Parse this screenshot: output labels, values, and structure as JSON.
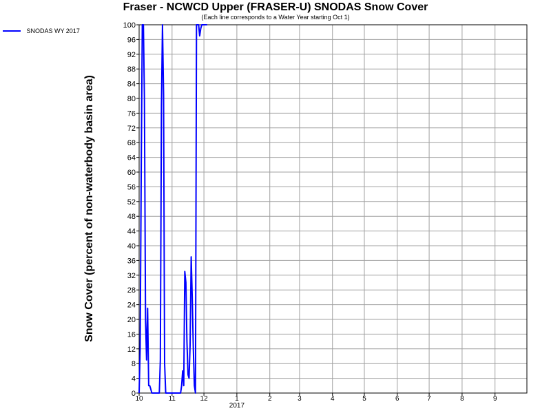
{
  "chart_data": {
    "type": "line",
    "title": "Fraser - NCWCD Upper (FRASER-U) SNODAS Snow Cover",
    "subtitle": "(Each line corresponds to a Water Year starting Oct 1)",
    "ylabel": "Snow Cover (percent of non-waterbody basin area)",
    "xlabel": "",
    "ylim": [
      0,
      100
    ],
    "y_ticks": [
      "0",
      "4",
      "8",
      "12",
      "16",
      "20",
      "24",
      "28",
      "32",
      "36",
      "40",
      "44",
      "48",
      "52",
      "56",
      "60",
      "64",
      "68",
      "72",
      "76",
      "80",
      "84",
      "88",
      "92",
      "96",
      "100"
    ],
    "x_ticks": [
      {
        "label": "10",
        "date": "2016-10-01"
      },
      {
        "label": "11",
        "date": "2016-11-01"
      },
      {
        "label": "12",
        "date": "2016-12-01"
      },
      {
        "label": "1",
        "date": "2017-01-01"
      },
      {
        "label": "2",
        "date": "2017-02-01"
      },
      {
        "label": "3",
        "date": "2017-03-01"
      },
      {
        "label": "4",
        "date": "2017-04-01"
      },
      {
        "label": "5",
        "date": "2017-05-01"
      },
      {
        "label": "6",
        "date": "2017-06-01"
      },
      {
        "label": "7",
        "date": "2017-07-01"
      },
      {
        "label": "8",
        "date": "2017-08-01"
      },
      {
        "label": "9",
        "date": "2017-09-01"
      }
    ],
    "x_year_label": "2017",
    "xlim": [
      "2016-10-01",
      "2017-09-30"
    ],
    "grid": true,
    "legend_position": "top-left",
    "series": [
      {
        "name": "SNODAS WY 2017",
        "color": "#0000ff",
        "x": [
          "2016-10-01",
          "2016-10-02",
          "2016-10-03",
          "2016-10-04",
          "2016-10-05",
          "2016-10-06",
          "2016-10-07",
          "2016-10-08",
          "2016-10-09",
          "2016-10-10",
          "2016-10-11",
          "2016-10-12",
          "2016-10-13",
          "2016-10-14",
          "2016-10-15",
          "2016-10-16",
          "2016-10-17",
          "2016-10-18",
          "2016-10-19",
          "2016-10-20",
          "2016-10-21",
          "2016-10-22",
          "2016-10-23",
          "2016-10-24",
          "2016-10-25",
          "2016-10-26",
          "2016-10-27",
          "2016-10-28",
          "2016-10-29",
          "2016-10-30",
          "2016-10-31",
          "2016-11-01",
          "2016-11-02",
          "2016-11-03",
          "2016-11-04",
          "2016-11-05",
          "2016-11-06",
          "2016-11-07",
          "2016-11-08",
          "2016-11-09",
          "2016-11-10",
          "2016-11-11",
          "2016-11-12",
          "2016-11-13",
          "2016-11-14",
          "2016-11-15",
          "2016-11-16",
          "2016-11-17",
          "2016-11-18",
          "2016-11-19",
          "2016-11-20",
          "2016-11-21",
          "2016-11-22",
          "2016-11-23",
          "2016-11-24",
          "2016-11-25",
          "2016-11-26",
          "2016-11-27",
          "2016-11-28",
          "2016-11-29",
          "2016-11-30",
          "2016-12-01",
          "2016-12-02",
          "2016-12-03",
          "2016-12-04"
        ],
        "y": [
          0,
          12,
          62,
          100,
          100,
          80,
          20,
          9,
          23,
          2,
          2,
          1,
          0,
          0,
          0,
          0,
          0,
          0,
          0,
          0,
          9,
          78,
          100,
          81,
          8,
          0,
          0,
          0,
          0,
          0,
          0,
          0,
          0,
          0,
          0,
          0,
          0,
          0,
          0,
          0,
          2,
          6,
          2,
          33,
          30,
          14,
          5,
          4,
          13,
          37,
          26,
          12,
          2,
          0,
          100,
          100,
          100,
          97,
          99,
          100,
          100,
          100,
          100,
          100,
          100
        ]
      }
    ]
  }
}
